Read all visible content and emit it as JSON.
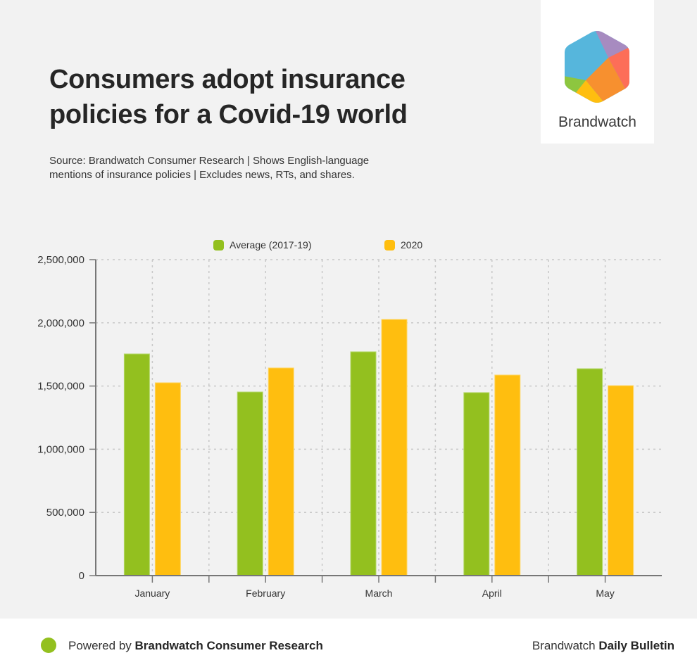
{
  "header": {
    "title_line1": "Consumers adopt insurance",
    "title_line2": "policies for a Covid-19 world",
    "source_line1": "Source: Brandwatch Consumer Research | Shows English-language",
    "source_line2": "mentions of insurance policies | Excludes news, RTs, and shares."
  },
  "logo": {
    "text": "Brandwatch",
    "icon": "brandwatch-hexagon-logo",
    "colors": [
      "#56b6dc",
      "#a78bc0",
      "#fd6e58",
      "#f7902f",
      "#ffbe0f",
      "#8dc63f"
    ]
  },
  "footer": {
    "left_prefix": "Powered by ",
    "left_bold": "Brandwatch Consumer Research",
    "right_prefix": "Brandwatch ",
    "right_bold": "Daily Bulletin",
    "dot_color": "#93c01f"
  },
  "chart_data": {
    "type": "bar",
    "title": "Consumers adopt insurance policies for a Covid-19 world",
    "xlabel": "",
    "ylabel": "",
    "categories": [
      "January",
      "February",
      "March",
      "April",
      "May"
    ],
    "series": [
      {
        "name": "Average (2017-19)",
        "color": "#93c01f",
        "values": [
          1754000,
          1453000,
          1771000,
          1448000,
          1637000
        ]
      },
      {
        "name": "2020",
        "color": "#ffbe0f",
        "values": [
          1526000,
          1643000,
          2027000,
          1587000,
          1503000
        ]
      }
    ],
    "ylim": [
      0,
      2500000
    ],
    "yticks": [
      0,
      500000,
      1000000,
      1500000,
      2000000,
      2500000
    ],
    "ytick_labels": [
      "0",
      "500,000",
      "1,000,000",
      "1,500,000",
      "2,000,000",
      "2,500,000"
    ],
    "grid": true,
    "legend_position": "top"
  }
}
